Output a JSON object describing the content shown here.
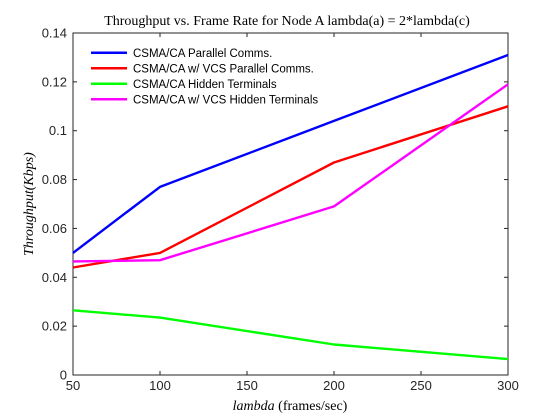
{
  "chart_data": {
    "type": "line",
    "title": "Throughput vs. Frame Rate for Node A lambda(a) = 2*lambda(c)",
    "xlabel": {
      "italic": "lambda",
      "rest": " (frames/sec)"
    },
    "ylabel": {
      "italic": "Throughput",
      "rest": "(Kbps)"
    },
    "xlim": [
      50,
      300
    ],
    "ylim": [
      0,
      0.14
    ],
    "x_ticks": [
      50,
      100,
      150,
      200,
      250,
      300
    ],
    "x_tick_labels": [
      "50",
      "100",
      "150",
      "200",
      "250",
      "300"
    ],
    "y_ticks": [
      0,
      0.02,
      0.04,
      0.06,
      0.08,
      0.1,
      0.12,
      0.14
    ],
    "y_tick_labels": [
      "0",
      "0.02",
      "0.04",
      "0.06",
      "0.08",
      "0.1",
      "0.12",
      "0.14"
    ],
    "grid": false,
    "legend_position": "top-left",
    "x": [
      50,
      100,
      200,
      300
    ],
    "series": [
      {
        "name": "CSMA/CA Parallel Comms.",
        "color": "#0000ff",
        "values": [
          0.05,
          0.077,
          0.104,
          0.131
        ]
      },
      {
        "name": "CSMA/CA w/ VCS Parallel Comms.",
        "color": "#ff0000",
        "values": [
          0.044,
          0.05,
          0.087,
          0.11
        ]
      },
      {
        "name": "CSMA/CA Hidden Terminals",
        "color": "#00ff00",
        "values": [
          0.0265,
          0.0235,
          0.0125,
          0.0065
        ]
      },
      {
        "name": "CSMA/CA w/ VCS Hidden Terminals",
        "color": "#ff00ff",
        "values": [
          0.0465,
          0.047,
          0.069,
          0.119
        ]
      }
    ]
  }
}
